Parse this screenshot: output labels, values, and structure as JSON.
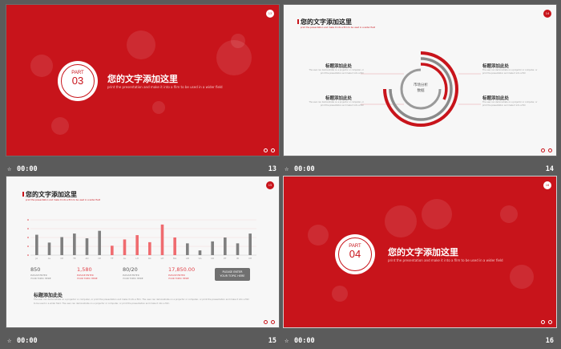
{
  "slides": [
    {
      "number": "13",
      "time": "00:00",
      "part_word": "PART",
      "part_no": "03",
      "title": "您的文字添加这里",
      "subtitle": "print the presentation and make it into a film to be used in a wider field",
      "corner": "13"
    },
    {
      "number": "14",
      "time": "00:00",
      "title": "您的文字添加这里",
      "subtitle": "print the presentation and make it into a film to be used in a wider field",
      "center_text": "市场分析\n数据",
      "corner": "14",
      "labels": [
        {
          "title": "标题添加此处",
          "body": "The user can demonstrate on a projector or computer, or print the presentation and make it into a film"
        },
        {
          "title": "标题添加此处",
          "body": "The user can demonstrate on a projector or computer, or print the presentation and make it into a film"
        },
        {
          "title": "标题添加此处",
          "body": "The user can demonstrate on a projector or computer, or print the presentation and make it into a film"
        },
        {
          "title": "标题添加此处",
          "body": "The user can demonstrate on a projector or computer, or print the presentation and make it into a film"
        }
      ]
    },
    {
      "number": "15",
      "time": "00:00",
      "title": "您的文字添加这里",
      "subtitle": "print the presentation and make it into a film to be used in a wider field",
      "corner": "15",
      "stats": [
        {
          "value": "850",
          "color": "#555555",
          "label": "PLEASE ENTER\nYOUR TOPIC HERE"
        },
        {
          "value": "1,580",
          "color": "#e0434a",
          "label": "PLEASE ENTER\nYOUR TOPIC HERE"
        },
        {
          "value": "80/20",
          "color": "#555555",
          "label": "PLEASE ENTER\nYOUR TOPIC HERE"
        },
        {
          "value": "17,850.00",
          "color": "#e0434a",
          "label": "PLEASE ENTER\nYOUR TOPIC HERE"
        }
      ],
      "button": "PLEASE ENTER\nYOUR TOPIC HERE",
      "section_title": "标题添加此处",
      "section_body": "The user can demonstrate on a projector or computer, or print the presentation and make it into a film. The user can demonstrate on a projector or computer, or print the presentation and make it into a film to be used in a wider field. The user can demonstrate on a projector or computer, or print the presentation and make it into a film."
    },
    {
      "number": "16",
      "time": "00:00",
      "part_word": "PART",
      "part_no": "04",
      "title": "您的文字添加这里",
      "subtitle": "print the presentation and make it into a film to be used in a wider field",
      "corner": "16"
    }
  ],
  "chart_data": {
    "type": "bar",
    "categories": [
      "JA",
      "AL",
      "CP",
      "TE",
      "AD",
      "CP",
      "TF",
      "AL",
      "LH",
      "RC",
      "LH",
      "MA",
      "AB",
      "VG",
      "CD",
      "PT",
      "IB",
      "VH"
    ],
    "values": [
      5.2,
      3.2,
      4.6,
      5.5,
      4.3,
      6.2,
      2.4,
      4.0,
      5.1,
      3.3,
      7.8,
      4.5,
      3.0,
      1.2,
      3.5,
      4.5,
      3.0,
      5.5
    ],
    "highlight": [
      false,
      false,
      false,
      false,
      false,
      false,
      true,
      true,
      true,
      true,
      true,
      true,
      false,
      false,
      false,
      false,
      false,
      false
    ],
    "ylim": [
      0,
      9
    ],
    "colors": {
      "normal": "#7f7f7f",
      "highlight": "#ef6b6f"
    }
  },
  "colors": {
    "brand": "#c8141b",
    "background": "#5b5b5b"
  }
}
